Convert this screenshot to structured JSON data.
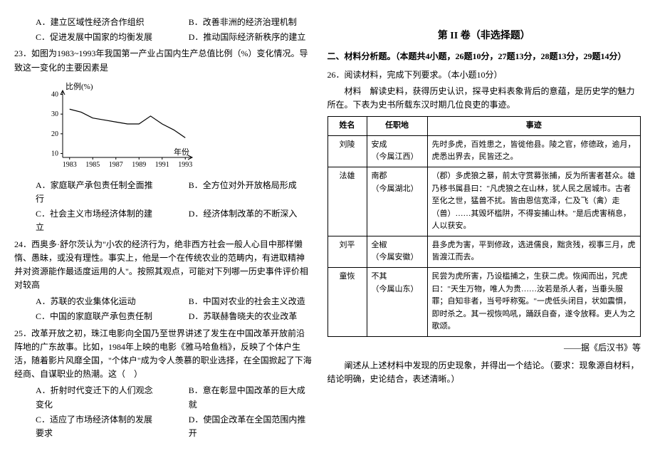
{
  "left": {
    "q22_options_row1": {
      "a": "A．建立区域性经济合作组织",
      "b": "B．改善非洲的经济治理机制"
    },
    "q22_options_row2": {
      "a": "C．促进发展中国家的均衡发展",
      "b": "D．推动国际经济新秩序的建立"
    },
    "q23_stem": "23．如图为1983~1993年我国第一产业占国内生产总值比例（%）变化情况。导致这一变化的主要因素是",
    "chart": {
      "type": "line",
      "y_label": "比例(%)",
      "x_label": "年份",
      "x_ticks": [
        "1983",
        "1985",
        "1987",
        "1989",
        "1991",
        "1993"
      ],
      "x_positions": [
        0,
        1,
        2,
        3,
        4,
        5
      ],
      "y_ticks": [
        10,
        20,
        30,
        40
      ],
      "ylim": [
        8,
        42
      ],
      "xlim": [
        -0.3,
        5.3
      ],
      "points_x": [
        0,
        0.5,
        1,
        1.5,
        2,
        2.5,
        3,
        3.5,
        4,
        4.5,
        5
      ],
      "points_y": [
        32.5,
        31,
        28,
        27,
        26,
        25,
        25,
        29,
        25,
        22,
        18
      ],
      "line_color": "#000000",
      "axis_color": "#000000",
      "bg": "#ffffff",
      "tick_fontsize": 10,
      "label_fontsize": 11,
      "line_width": 1.2
    },
    "q23_options_row1": {
      "a": "A．家庭联产承包责任制全面推行",
      "b": "B．全方位对外开放格局形成"
    },
    "q23_options_row2": {
      "a": "C．社会主义市场经济体制的建立",
      "b": "D．经济体制改革的不断深入"
    },
    "q24_stem": "24．西奥多·舒尔茨认为\"小农的经济行为，绝非西方社会一般人心目中那样懒惰、愚昧，或没有理性。事实上，他是一个在传统农业的范畴内，有进取精神并对资源能作最适度运用的人\"。按照其观点，可能对下列哪一历史事件评价相对较高",
    "q24_options_row1": {
      "a": "A．苏联的农业集体化运动",
      "b": "B．中国对农业的社会主义改造"
    },
    "q24_options_row2": {
      "a": "C．中国的家庭联产承包责任制",
      "b": "D．苏联赫鲁晓夫的农业改革"
    },
    "q25_stem": "25．改革开放之初，珠江电影向全国乃至世界讲述了发生在中国改革开放前沿阵地的广东故事。比如，1984年上映的电影《雅马哈鱼档》，反映了个体户生活，随着影片风靡全国，\"个体户\"成为令人羡慕的职业选择，在全国掀起了下海经商、自谋职业的热潮。这（　）",
    "q25_options_row1": {
      "a": "A．折射时代变迁下的人们观念变化",
      "b": "B．意在彰显中国改革的巨大成就"
    },
    "q25_options_row2": {
      "a": "C．适应了市场经济体制的发展要求",
      "b": "D．使国企改革在全国范围内推开"
    }
  },
  "right": {
    "section_header": "第 II 卷（非选择题）",
    "scoring": "二、材料分析题。（本题共4小题，26题10分，27题13分，28题13分，29题14分）",
    "q26_title": "26．阅读材料，完成下列要求。（本小题10分）",
    "q26_intro": "材料　解读史料，获得历史认识，探寻史料表象背后的意蕴，是历史学的魅力所在。下表为史书所载东汉时期几位良吏的事迹。",
    "table": {
      "columns": [
        "姓名",
        "任职地",
        "事迹"
      ],
      "col_widths": [
        "42px",
        "72px",
        "auto"
      ],
      "rows": [
        {
          "name": "刘陵",
          "place": "安成\n（今属江西）",
          "deed": "先时多虎，百姓患之，皆徙他县。陵之官，修德政，逾月，虎悉出界去，民皆还之。"
        },
        {
          "name": "法雄",
          "place": "南郡\n（今属湖北）",
          "deed": "（郡）多虎狼之暴，前太守赏募张捕，反为所害者甚众。雄乃移书属县曰：\"凡虎狼之在山林，犹人民之居城市。古者至化之世，猛兽不扰。皆由恩信宽泽，仁及飞（禽）走（兽）……其毁坏槛阱，不得妄捕山林。\"是后虎害稍息，人以获安。"
        },
        {
          "name": "刘平",
          "place": "全椒\n（今属安徽）",
          "deed": "县多虎为害，平到修政，选进儒良，黜贪残，视事三月，虎皆渡江而去。"
        },
        {
          "name": "童恢",
          "place": "不其\n（今属山东）",
          "deed": "民尝为虎所害，乃设槛捕之，生获二虎。恢闻而出，咒虎曰：\"天生万物，唯人为贵……汝若是杀人者，当垂头服罪；自知非者，当号呼称冤。\"一虎低头闭目，状如震惧，即时杀之。其一视恢鸣吼，踊跃自奋，遂令放释。吏人为之歌颂。"
        }
      ]
    },
    "source": "——据《后汉书》等",
    "q26_task": "阐述从上述材料中发现的历史现象，并得出一个结论。（要求：现象源自材料，结论明确，史论结合，表述清晰。）"
  }
}
